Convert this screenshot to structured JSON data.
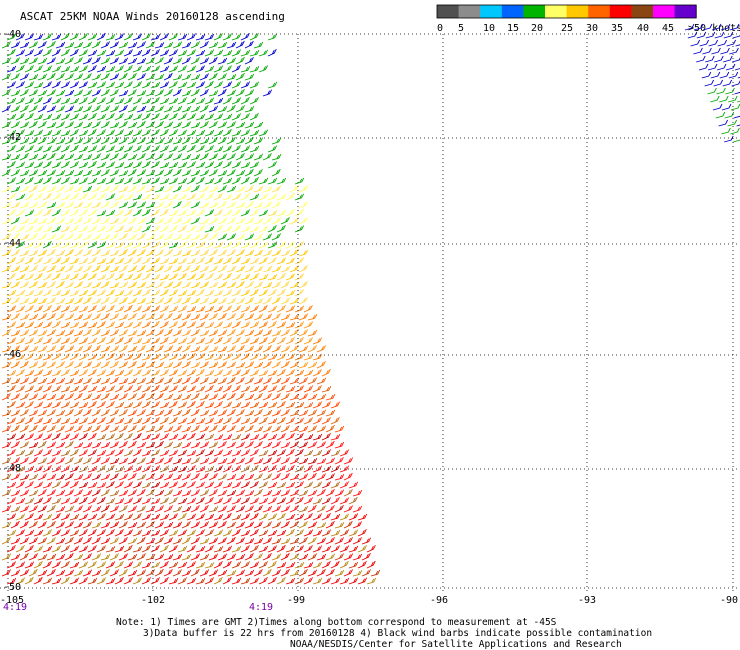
{
  "title": "ASCAT 25KM NOAA Winds 20160128 ascending",
  "legend": {
    "labels": [
      "0",
      "5",
      "10",
      "15",
      "20",
      "25",
      "30",
      "35",
      "40",
      "45",
      ">50 knots"
    ],
    "colors": [
      "#505050",
      "#8c8c8c",
      "#00c8ff",
      "#0064ff",
      "#00b400",
      "#ffff66",
      "#ffc800",
      "#ff6400",
      "#ff0000",
      "#8b4513",
      "#ff00ff",
      "#6600cc"
    ]
  },
  "lat_labels": [
    "-40",
    "-42",
    "-44",
    "-46",
    "-48",
    "-50"
  ],
  "lon_labels": [
    "-105",
    "-102",
    "-99",
    "-96",
    "-93",
    "-90"
  ],
  "time_labels": [
    "4:19",
    "4:19"
  ],
  "notes": [
    "Note: 1) Times are GMT 2)Times along bottom correspond to measurement at -45S",
    "3)Data buffer is 22 hrs from 20160128 4) Black wind barbs indicate possible contamination",
    "NOAA/NESDIS/Center for Satellite Applications and Research"
  ]
}
